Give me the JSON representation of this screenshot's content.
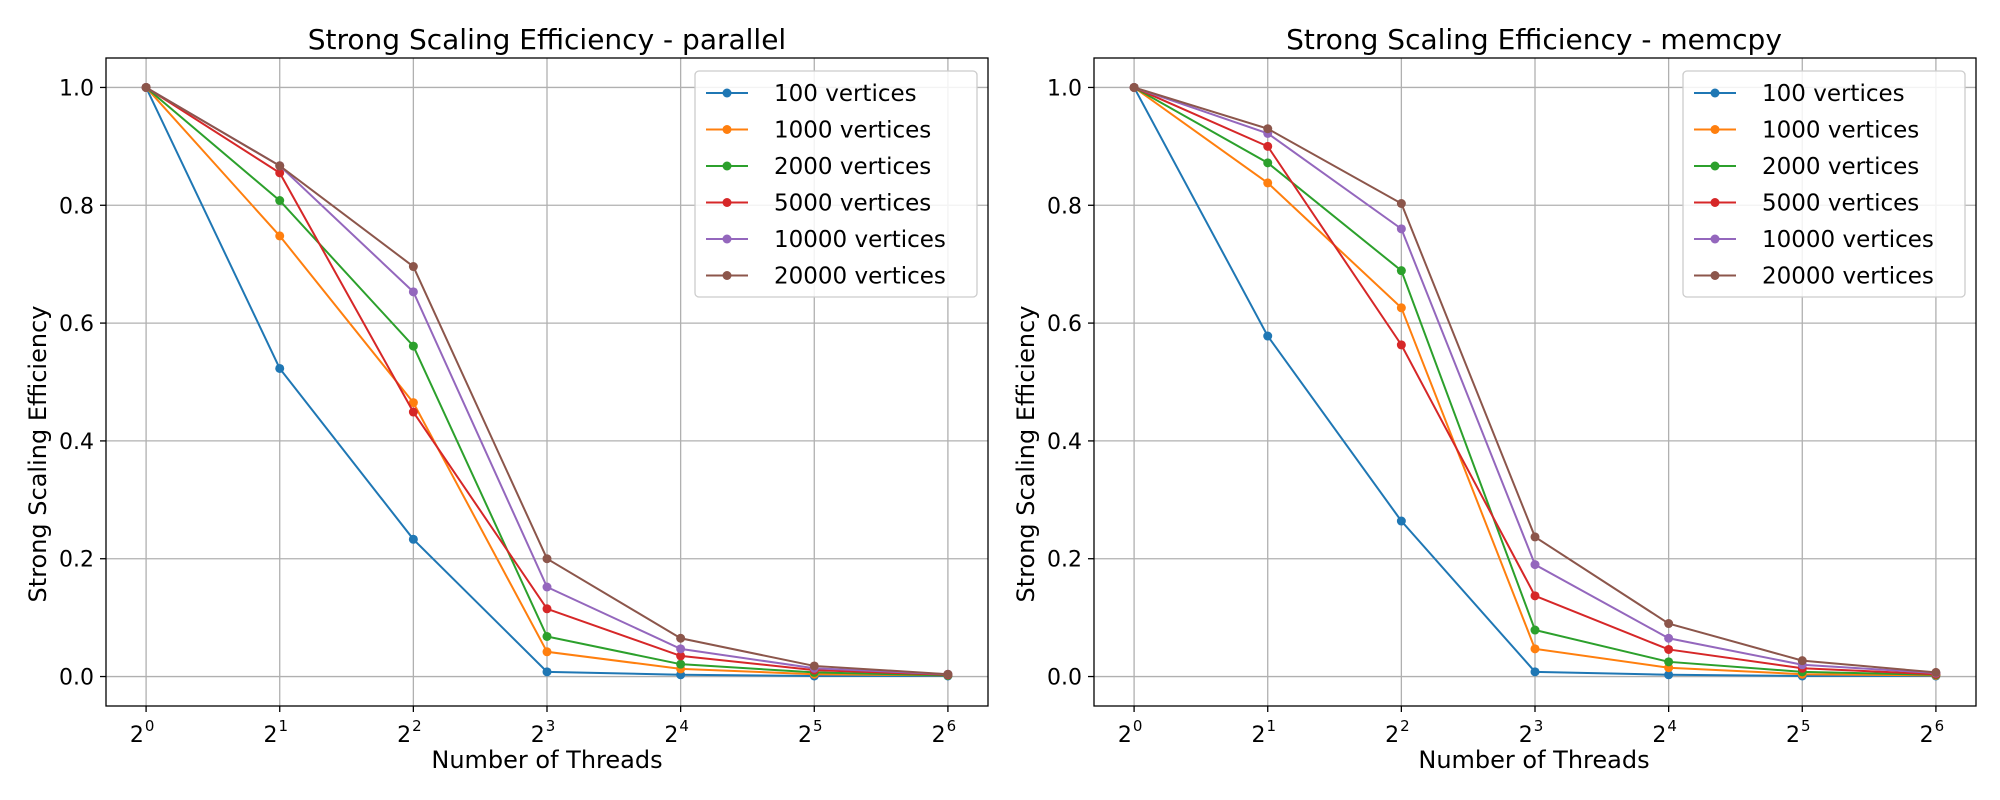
{
  "colors": [
    "#1f77b4",
    "#ff7f0e",
    "#2ca02c",
    "#d62728",
    "#9467bd",
    "#8c564b"
  ],
  "chart_data": [
    {
      "type": "line",
      "title": "Strong Scaling Efficiency - parallel",
      "xlabel": "Number of Threads",
      "ylabel": "Strong Scaling Efficiency",
      "x_scale": "log2",
      "x": [
        1,
        2,
        4,
        8,
        16,
        32,
        64
      ],
      "x_tick_base": "2",
      "x_tick_exponents": [
        "0",
        "1",
        "2",
        "3",
        "4",
        "5",
        "6"
      ],
      "y_ticks": [
        "0.0",
        "0.2",
        "0.4",
        "0.6",
        "0.8",
        "1.0"
      ],
      "ylim": [
        -0.05,
        1.05
      ],
      "grid": true,
      "legend_position": "top-right",
      "series": [
        {
          "name": "100 vertices",
          "values": [
            1.0,
            0.523,
            0.233,
            0.008,
            0.003,
            0.001,
            0.001
          ]
        },
        {
          "name": "1000 vertices",
          "values": [
            1.0,
            0.748,
            0.465,
            0.042,
            0.013,
            0.004,
            0.002
          ]
        },
        {
          "name": "2000 vertices",
          "values": [
            1.0,
            0.808,
            0.561,
            0.068,
            0.021,
            0.007,
            0.002
          ]
        },
        {
          "name": "5000 vertices",
          "values": [
            1.0,
            0.855,
            0.449,
            0.115,
            0.035,
            0.011,
            0.003
          ]
        },
        {
          "name": "10000 vertices",
          "values": [
            1.0,
            0.867,
            0.653,
            0.152,
            0.047,
            0.014,
            0.004
          ]
        },
        {
          "name": "20000 vertices",
          "values": [
            1.0,
            0.867,
            0.696,
            0.2,
            0.065,
            0.018,
            0.004
          ]
        }
      ]
    },
    {
      "type": "line",
      "title": "Strong Scaling Efficiency - memcpy",
      "xlabel": "Number of Threads",
      "ylabel": "Strong Scaling Efficiency",
      "x_scale": "log2",
      "x": [
        1,
        2,
        4,
        8,
        16,
        32,
        64
      ],
      "x_tick_base": "2",
      "x_tick_exponents": [
        "0",
        "1",
        "2",
        "3",
        "4",
        "5",
        "6"
      ],
      "y_ticks": [
        "0.0",
        "0.2",
        "0.4",
        "0.6",
        "0.8",
        "1.0"
      ],
      "ylim": [
        -0.05,
        1.05
      ],
      "grid": true,
      "legend_position": "top-right",
      "series": [
        {
          "name": "100 vertices",
          "values": [
            1.0,
            0.578,
            0.264,
            0.008,
            0.003,
            0.001,
            0.001
          ]
        },
        {
          "name": "1000 vertices",
          "values": [
            1.0,
            0.838,
            0.626,
            0.047,
            0.015,
            0.004,
            0.002
          ]
        },
        {
          "name": "2000 vertices",
          "values": [
            1.0,
            0.872,
            0.689,
            0.079,
            0.025,
            0.008,
            0.003
          ]
        },
        {
          "name": "5000 vertices",
          "values": [
            1.0,
            0.9,
            0.563,
            0.137,
            0.046,
            0.014,
            0.004
          ]
        },
        {
          "name": "10000 vertices",
          "values": [
            1.0,
            0.922,
            0.76,
            0.19,
            0.065,
            0.02,
            0.006
          ]
        },
        {
          "name": "20000 vertices",
          "values": [
            1.0,
            0.93,
            0.803,
            0.237,
            0.09,
            0.027,
            0.007
          ]
        }
      ]
    }
  ]
}
